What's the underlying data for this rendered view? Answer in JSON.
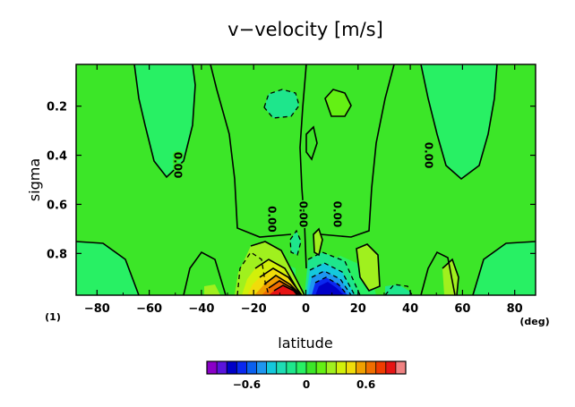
{
  "chart_data": {
    "type": "contour",
    "title": "v−velocity [m/s]",
    "xlabel": "latitude",
    "ylabel": "sigma",
    "x_unit": "(deg)",
    "panel_label": "(1)",
    "xlim": [
      -88,
      88
    ],
    "ylim": [
      0.03,
      0.97
    ],
    "y_inverted": true,
    "x_ticks": [
      -80,
      -60,
      -40,
      -20,
      0,
      20,
      40,
      60,
      80
    ],
    "x_tick_labels": [
      "−80",
      "−60",
      "−40",
      "−20",
      "0",
      "20",
      "40",
      "60",
      "80"
    ],
    "y_ticks": [
      0.2,
      0.4,
      0.6,
      0.8
    ],
    "y_tick_labels": [
      "0.2",
      "0.4",
      "0.6",
      "0.8"
    ],
    "contour_labels": [
      {
        "text": "0.00",
        "x": -49,
        "y": 0.44
      },
      {
        "text": "0.00",
        "x": -13,
        "y": 0.66
      },
      {
        "text": "0.00",
        "x": -1,
        "y": 0.64
      },
      {
        "text": "0.00",
        "x": 12,
        "y": 0.64
      },
      {
        "text": "0.00",
        "x": 47,
        "y": 0.4
      }
    ],
    "features": [
      {
        "kind": "max",
        "x": -8,
        "y": 0.95,
        "value": 0.9
      },
      {
        "kind": "min",
        "x": 8,
        "y": 0.95,
        "value": -0.8
      },
      {
        "kind": "min",
        "x": -15,
        "y": 0.19,
        "value": -0.1
      },
      {
        "kind": "max",
        "x": 7,
        "y": 0.17,
        "value": 0.1
      }
    ],
    "colorbar": {
      "colors": [
        "#8a00c8",
        "#5a14dc",
        "#0000c8",
        "#0a28f0",
        "#0a60f0",
        "#1e96f0",
        "#14c8dc",
        "#1edcb4",
        "#1ee68c",
        "#28f064",
        "#3ce628",
        "#64f014",
        "#a0f01e",
        "#d2f00a",
        "#f0dc0a",
        "#f0a000",
        "#f06e00",
        "#f03c00",
        "#e61414",
        "#f08282"
      ],
      "ticks": [
        -0.6,
        0,
        0.6
      ],
      "tick_labels": [
        "−0.6",
        "0",
        "0.6"
      ],
      "min": -1.0,
      "max": 1.0
    }
  }
}
